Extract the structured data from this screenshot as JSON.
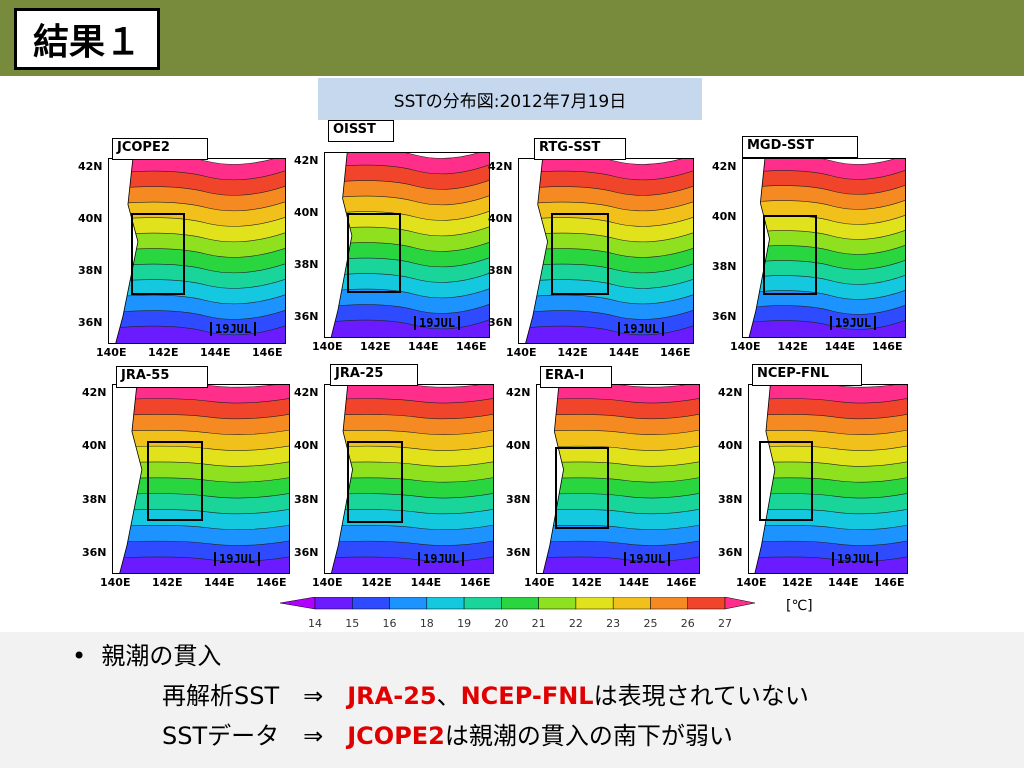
{
  "header": {
    "title": "結果１",
    "bar_color": "#788a3b"
  },
  "caption": "SSTの分布図:2012年7月19日",
  "panels": [
    {
      "label": "JCOPE2"
    },
    {
      "label": "OISST"
    },
    {
      "label": "RTG-SST"
    },
    {
      "label": "MGD-SST"
    },
    {
      "label": "JRA-55"
    },
    {
      "label": "JRA-25"
    },
    {
      "label": "ERA-I"
    },
    {
      "label": "NCEP-FNL"
    }
  ],
  "map_ticks": {
    "lat": [
      "42N",
      "40N",
      "38N",
      "36N"
    ],
    "lon": [
      "140E",
      "142E",
      "144E",
      "146E"
    ],
    "date_tag": "19JUL"
  },
  "colorbar": {
    "labels": [
      "14",
      "15",
      "16",
      "18",
      "19",
      "20",
      "21",
      "22",
      "23",
      "25",
      "26",
      "27"
    ],
    "colors": [
      "#b000ff",
      "#6a1bff",
      "#2f4bff",
      "#1c93ff",
      "#14c8e0",
      "#19d59a",
      "#2ad640",
      "#8fe01e",
      "#e2e21c",
      "#f2c01a",
      "#f58a22",
      "#f0452a",
      "#ff2e8a"
    ],
    "unit": "[℃]"
  },
  "bullets": {
    "head": "親潮の貫入",
    "line1": {
      "prefix": "再解析SST　⇒　",
      "red1": "JRA-25",
      "sep": "、",
      "red2": "NCEP-FNL",
      "rest": "は表現されていない"
    },
    "line2": {
      "prefix": "SSTデータ　⇒　",
      "red1": "JCOPE2",
      "rest": "は親潮の貫入の南下が弱い"
    }
  }
}
